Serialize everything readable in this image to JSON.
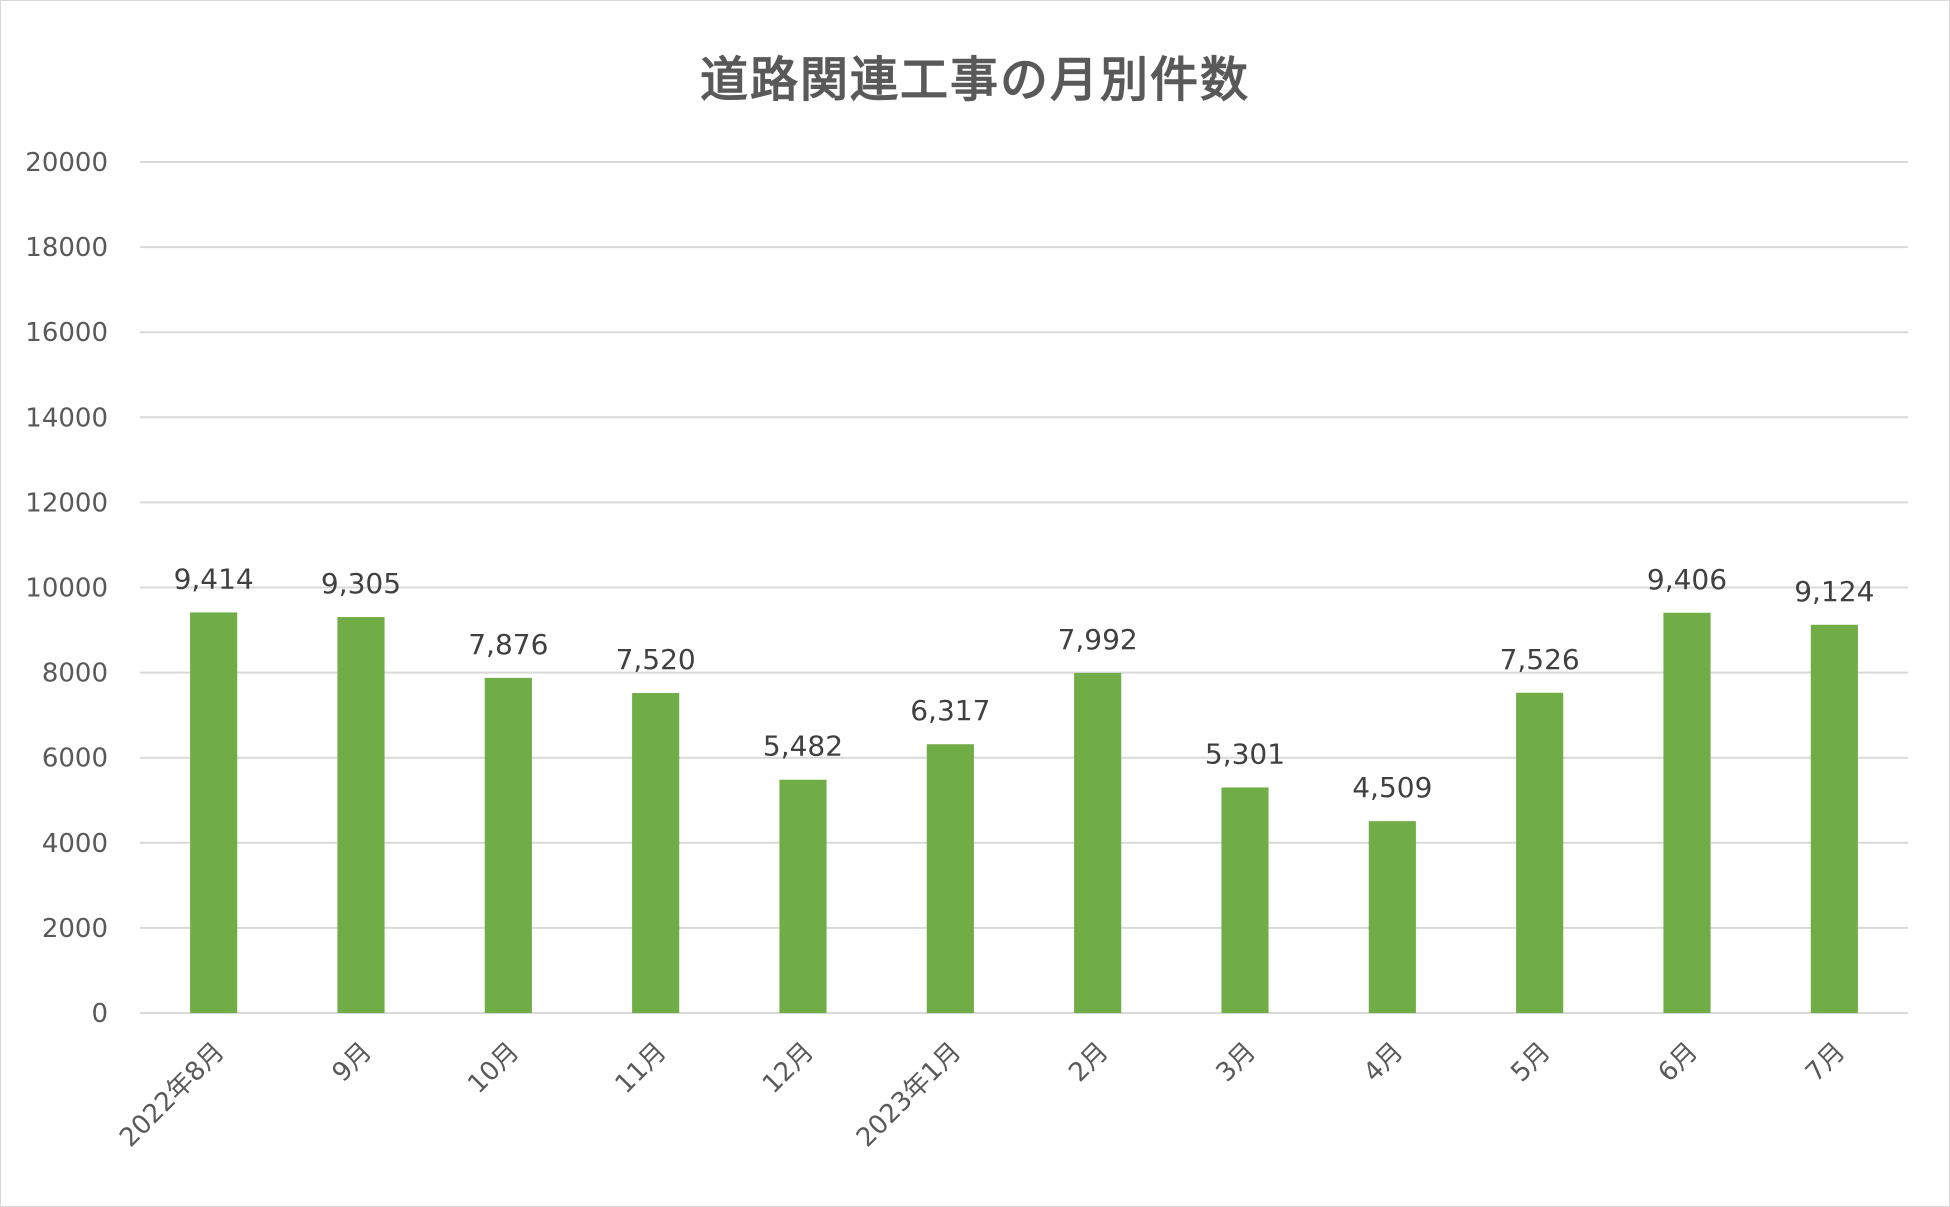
{
  "chart_data": {
    "type": "bar",
    "title": "道路関連工事の月別件数",
    "categories": [
      "2022年8月",
      "9月",
      "10月",
      "11月",
      "12月",
      "2023年1月",
      "2月",
      "3月",
      "4月",
      "5月",
      "6月",
      "7月"
    ],
    "values": [
      9414,
      9305,
      7876,
      7520,
      5482,
      6317,
      7992,
      5301,
      4509,
      7526,
      9406,
      9124
    ],
    "data_labels": [
      "9,414",
      "9,305",
      "7,876",
      "7,520",
      "5,482",
      "6,317",
      "7,992",
      "5,301",
      "4,509",
      "7,526",
      "9,406",
      "9,124"
    ],
    "y_ticks": [
      0,
      2000,
      4000,
      6000,
      8000,
      10000,
      12000,
      14000,
      16000,
      18000,
      20000
    ],
    "ylim": [
      0,
      20000
    ],
    "grid": true,
    "legend": "none",
    "bar_color": "#70ad47",
    "grid_color": "#d9d9d9"
  }
}
